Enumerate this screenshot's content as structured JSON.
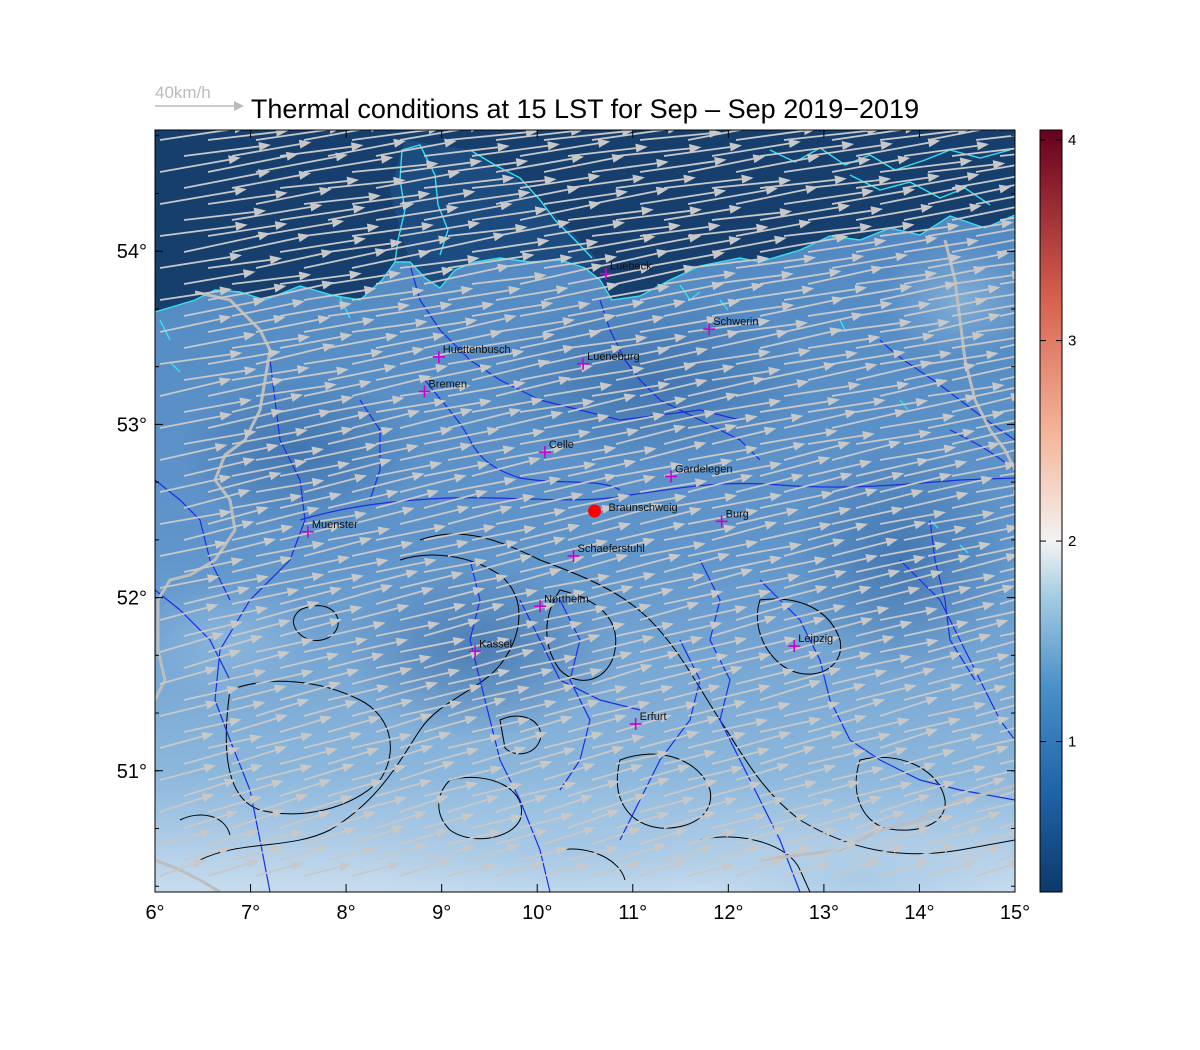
{
  "title": "Thermal conditions at 15 LST for Sep – Sep  2019−2019",
  "reference_vector": {
    "label": "40km/h",
    "speed_kmh": 40
  },
  "chart_data": {
    "type": "map",
    "lon_range": [
      6,
      15
    ],
    "lat_range": [
      50.3,
      54.7
    ],
    "x_ticks": [
      {
        "value": 6,
        "label": "6°"
      },
      {
        "value": 7,
        "label": "7°"
      },
      {
        "value": 8,
        "label": "8°"
      },
      {
        "value": 9,
        "label": "9°"
      },
      {
        "value": 10,
        "label": "10°"
      },
      {
        "value": 11,
        "label": "11°"
      },
      {
        "value": 12,
        "label": "12°"
      },
      {
        "value": 13,
        "label": "13°"
      },
      {
        "value": 14,
        "label": "14°"
      },
      {
        "value": 15,
        "label": "15°"
      }
    ],
    "y_ticks": [
      {
        "value": 51,
        "label": "51°"
      },
      {
        "value": 52,
        "label": "52°"
      },
      {
        "value": 53,
        "label": "53°"
      },
      {
        "value": 54,
        "label": "54°"
      }
    ],
    "colorbar": {
      "range": [
        0.25,
        4.05
      ],
      "ticks": [
        1,
        2,
        3,
        4
      ],
      "colors": [
        "#0b3a6b",
        "#1f63a8",
        "#4a90c8",
        "#a6cde3",
        "#f3f3f3",
        "#f4b69a",
        "#d6604d",
        "#67001f"
      ]
    },
    "cities": [
      {
        "name": "Luebeck",
        "lon": 10.72,
        "lat": 53.87
      },
      {
        "name": "Schwerin",
        "lon": 11.8,
        "lat": 53.55
      },
      {
        "name": "Huettenbusch",
        "lon": 8.97,
        "lat": 53.39
      },
      {
        "name": "Lueneburg",
        "lon": 10.48,
        "lat": 53.35
      },
      {
        "name": "Bremen",
        "lon": 8.82,
        "lat": 53.19
      },
      {
        "name": "Celle",
        "lon": 10.08,
        "lat": 52.84
      },
      {
        "name": "Gardelegen",
        "lon": 11.4,
        "lat": 52.7
      },
      {
        "name": "Braunschweig",
        "lon": 10.6,
        "lat": 52.5,
        "marker": "dot"
      },
      {
        "name": "Burg",
        "lon": 11.93,
        "lat": 52.44
      },
      {
        "name": "Muenster",
        "lon": 7.6,
        "lat": 52.38
      },
      {
        "name": "Schaeferstuhl",
        "lon": 10.38,
        "lat": 52.24
      },
      {
        "name": "Northeim",
        "lon": 10.03,
        "lat": 51.95
      },
      {
        "name": "Leipzig",
        "lon": 12.69,
        "lat": 51.72
      },
      {
        "name": "Kassel",
        "lon": 9.35,
        "lat": 51.69
      },
      {
        "name": "Erfurt",
        "lon": 11.03,
        "lat": 51.27
      }
    ],
    "wind": {
      "direction": "west to east, slightly south-of-west origin",
      "speed_range_kmh": [
        15,
        45
      ]
    },
    "colors": {
      "sea": "#163d6b",
      "land_low": "#5b8fc7",
      "land_high": "#a9c9e4",
      "coastline": "#36e0f0",
      "rivers": "#1c2ee0",
      "borders": "#bdbdbd",
      "terrain_contours": "#000000",
      "city_marker": "#cc00cc",
      "main_site": "#ff0000",
      "wind_arrows": "#c8c8c8"
    }
  }
}
